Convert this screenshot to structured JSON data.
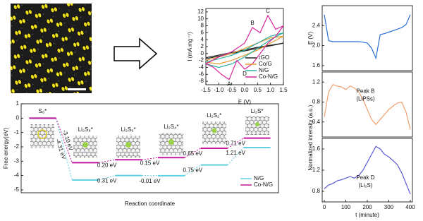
{
  "chart_data": [
    {
      "type": "line",
      "y_label": "I (mA mg⁻¹)",
      "x_label": "E (V)",
      "xlim": [
        -1.5,
        1.5
      ],
      "ylim": [
        -9,
        13
      ],
      "xticks": [
        {
          "value": -1.5,
          "label": "-1.5"
        },
        {
          "value": -1,
          "label": "-1.0"
        },
        {
          "value": -0.5,
          "label": "-0.5"
        },
        {
          "value": 0,
          "label": "0.0"
        },
        {
          "value": 0.5,
          "label": "0.5"
        },
        {
          "value": 1,
          "label": "1.0"
        },
        {
          "value": 1.5,
          "label": "1.5"
        }
      ],
      "yticks": [
        12,
        10,
        8,
        6,
        4,
        2,
        0,
        -2,
        -4,
        -6,
        -8
      ],
      "legend": "lower right",
      "series": [
        {
          "name": "rGO",
          "color": "#222222",
          "x": [
            -1.5,
            -0.5,
            0.5,
            1.5,
            0.5,
            -0.5,
            -1.5
          ],
          "values": [
            -1.5,
            0,
            1.5,
            3,
            1.8,
            0.3,
            -1.2
          ]
        },
        {
          "name": "Co/G",
          "color": "#e69b2e",
          "x": [
            -1.5,
            -1,
            -0.5,
            0,
            0.5,
            1,
            1.5,
            1,
            0.5,
            0,
            -0.5,
            -1,
            -1.5
          ],
          "values": [
            -2,
            -1,
            0,
            1.5,
            3,
            4.5,
            5,
            3,
            1,
            -0.5,
            -2,
            -3,
            -2.5
          ]
        },
        {
          "name": "N/G",
          "color": "#2ab0a0",
          "x": [
            -1.5,
            -1,
            -0.5,
            0,
            0.5,
            1,
            1.5,
            1,
            0.5,
            0,
            -0.5,
            -1,
            -1.5
          ],
          "values": [
            -2.5,
            -1.5,
            -0.5,
            1,
            3,
            5,
            6,
            4,
            1.5,
            -1,
            -3,
            -4,
            -3
          ]
        },
        {
          "name": "Co-N/G",
          "color": "#d6249a",
          "x": [
            -1.5,
            -1,
            -0.5,
            0,
            0.3,
            0.6,
            0.9,
            1.2,
            1.5,
            1.2,
            0.9,
            0.6,
            0.3,
            0,
            -0.3,
            -0.6,
            -0.9,
            -1.2,
            -1.5
          ],
          "values": [
            -3,
            -1,
            0.5,
            3,
            7.5,
            6,
            11,
            7,
            8,
            5,
            3,
            0,
            -3,
            -4.5,
            -2,
            -7.5,
            -6,
            -4,
            -3
          ]
        }
      ],
      "annotations": [
        {
          "text": "A",
          "x": -0.6,
          "y": -7.5
        },
        {
          "text": "B",
          "x": 0.3,
          "y": 7.5
        },
        {
          "text": "C",
          "x": 0.9,
          "y": 11
        },
        {
          "text": "D",
          "x": 0,
          "y": -4.5
        }
      ]
    },
    {
      "type": "energy-level",
      "y_label": "Free energy(eV)",
      "x_label": "Reaction coordinate",
      "categories": [
        "S₈*",
        "Li₂S₈*",
        "Li₂S₆*",
        "Li₂S₄*",
        "Li₂S₂*",
        "Li₂S*"
      ],
      "ylim": [
        -5.2,
        1
      ],
      "yticks": [
        1,
        0,
        -1,
        -2,
        -3,
        -4,
        -5
      ],
      "legend": "lower right",
      "series": [
        {
          "name": "N/G",
          "color": "#5fd0e0",
          "values": [
            0,
            -4.31,
            -4.0,
            -4.01,
            -3.26,
            -2.05
          ],
          "step_labels": [
            "-4.31 eV",
            "0.31 eV",
            "-0.01 eV",
            "0.75 eV",
            "1.21 eV"
          ]
        },
        {
          "name": "Co-N/G",
          "color": "#c2189b",
          "values": [
            0,
            -3.1,
            -2.9,
            -2.75,
            -2.1,
            -1.39
          ],
          "step_labels": [
            "-3.10 eV",
            "0.20 eV",
            "0.15 eV",
            "0.65 eV",
            "0.71 eV"
          ]
        }
      ]
    },
    {
      "type": "line",
      "y_label": "E (V)",
      "xlim": [
        -10,
        410
      ],
      "ylim": [
        1.5,
        2.8
      ],
      "yticks": [
        2.4,
        {
          "value": 2,
          "label": "2.0"
        },
        1.6
      ],
      "x": [
        0,
        20,
        40,
        60,
        80,
        100,
        120,
        140,
        160,
        180,
        200,
        220,
        240,
        260,
        280,
        300,
        320,
        340,
        360,
        380,
        400
      ],
      "series": [
        {
          "color": "#2a6fd6",
          "values": [
            2.62,
            2.1,
            2.08,
            2.08,
            2.08,
            2.08,
            2.08,
            2.08,
            2.08,
            2.07,
            2.05,
            1.95,
            1.75,
            2.22,
            2.24,
            2.27,
            2.3,
            2.33,
            2.36,
            2.42,
            2.62
          ]
        }
      ]
    },
    {
      "type": "line",
      "y_label": "Normalized intensity (a.u.)",
      "xlim": [
        -10,
        410
      ],
      "ylim": [
        0.1,
        1.4
      ],
      "yticks": [
        1.2,
        0.8,
        0.4
      ],
      "annotation": [
        "Peak B",
        "(LiPSs)"
      ],
      "x": [
        0,
        20,
        40,
        60,
        80,
        100,
        120,
        140,
        160,
        180,
        200,
        220,
        240,
        260,
        280,
        300,
        320,
        340,
        360,
        380,
        400
      ],
      "series": [
        {
          "color": "#f0a070",
          "values": [
            0.5,
            1.0,
            1.15,
            1.12,
            1.1,
            1.05,
            1.12,
            1.08,
            1.0,
            0.85,
            0.65,
            0.45,
            0.35,
            0.45,
            0.55,
            0.65,
            0.72,
            0.78,
            0.8,
            0.6,
            0.25
          ]
        }
      ]
    },
    {
      "type": "line",
      "x_label": "t (minute)",
      "xlim": [
        -10,
        410
      ],
      "ylim": [
        0.6,
        1.8
      ],
      "xticks": [
        0,
        100,
        200,
        300,
        400
      ],
      "yticks": [
        1.6,
        1.2,
        0.8
      ],
      "annotation": [
        "Peak D",
        "(Li₂S)"
      ],
      "x": [
        0,
        20,
        40,
        60,
        80,
        100,
        120,
        140,
        160,
        180,
        200,
        220,
        240,
        260,
        280,
        300,
        320,
        340,
        360,
        380,
        400
      ],
      "series": [
        {
          "color": "#5a5ad6",
          "values": [
            0.85,
            0.92,
            0.95,
            1.0,
            1.02,
            1.05,
            1.08,
            1.05,
            1.1,
            1.2,
            1.35,
            1.5,
            1.65,
            1.6,
            1.5,
            1.45,
            1.38,
            1.3,
            1.15,
            0.95,
            0.75
          ]
        }
      ]
    }
  ]
}
